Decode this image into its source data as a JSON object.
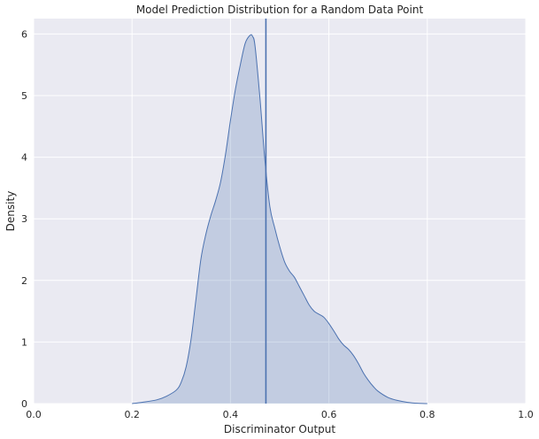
{
  "chart_data": {
    "type": "area",
    "title": "Model Prediction Distribution for a Random Data Point",
    "xlabel": "Discriminator Output",
    "ylabel": "Density",
    "xlim": [
      0,
      1
    ],
    "ylim": [
      0,
      6.25
    ],
    "x_ticks": [
      0,
      0.2,
      0.4,
      0.6,
      0.8,
      1
    ],
    "x_tick_labels": [
      "0.0",
      "0.2",
      "0.4",
      "0.6",
      "0.8",
      "1.0"
    ],
    "y_ticks": [
      0,
      1,
      2,
      3,
      4,
      5,
      6
    ],
    "y_tick_labels": [
      "0",
      "1",
      "2",
      "3",
      "4",
      "5",
      "6"
    ],
    "grid": true,
    "series": [
      {
        "kind": "kde",
        "x": [
          0.2,
          0.22,
          0.25,
          0.27,
          0.29,
          0.3,
          0.31,
          0.32,
          0.33,
          0.34,
          0.35,
          0.36,
          0.37,
          0.38,
          0.39,
          0.4,
          0.41,
          0.42,
          0.43,
          0.44,
          0.445,
          0.45,
          0.46,
          0.47,
          0.48,
          0.49,
          0.5,
          0.51,
          0.52,
          0.53,
          0.54,
          0.55,
          0.56,
          0.57,
          0.58,
          0.59,
          0.6,
          0.61,
          0.62,
          0.63,
          0.64,
          0.65,
          0.66,
          0.67,
          0.68,
          0.69,
          0.7,
          0.72,
          0.74,
          0.76,
          0.78,
          0.8
        ],
        "y": [
          0.0,
          0.02,
          0.06,
          0.12,
          0.22,
          0.35,
          0.6,
          1.05,
          1.7,
          2.35,
          2.75,
          3.05,
          3.3,
          3.6,
          4.05,
          4.6,
          5.1,
          5.5,
          5.85,
          5.98,
          5.96,
          5.8,
          4.95,
          3.95,
          3.2,
          2.85,
          2.55,
          2.3,
          2.15,
          2.05,
          1.9,
          1.75,
          1.6,
          1.5,
          1.45,
          1.4,
          1.3,
          1.18,
          1.05,
          0.95,
          0.88,
          0.78,
          0.65,
          0.5,
          0.38,
          0.28,
          0.2,
          0.1,
          0.05,
          0.02,
          0.005,
          0.0
        ]
      }
    ],
    "vertical_line": {
      "x": 0.472
    },
    "colors": {
      "background": "#eaeaf2",
      "grid": "#ffffff",
      "line": "#4c72b0",
      "fill": "#4c72b0"
    }
  }
}
